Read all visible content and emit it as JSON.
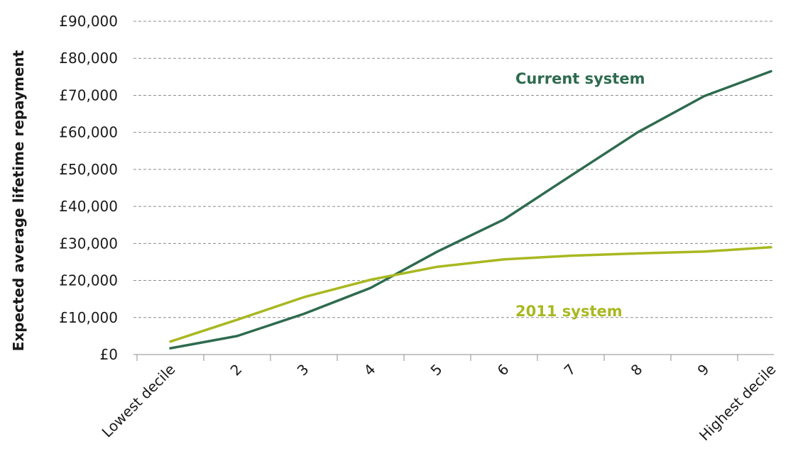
{
  "chart_data": {
    "type": "line",
    "title": "",
    "xlabel": "",
    "ylabel": "Expected average lifetime repayment",
    "categories": [
      "Lowest decile",
      "2",
      "3",
      "4",
      "5",
      "6",
      "7",
      "8",
      "9",
      "Highest decile"
    ],
    "ylim": [
      0,
      90000
    ],
    "yticks": [
      0,
      10000,
      20000,
      30000,
      40000,
      50000,
      60000,
      70000,
      80000,
      90000
    ],
    "ytick_labels": [
      "£0",
      "£10,000",
      "£20,000",
      "£30,000",
      "£40,000",
      "£50,000",
      "£60,000",
      "£70,000",
      "£80,000",
      "£90,000"
    ],
    "grid": true,
    "series": [
      {
        "name": "Current system",
        "color": "#2e6b4f",
        "values": [
          1700,
          5000,
          11000,
          18000,
          27800,
          36500,
          48300,
          60000,
          69800,
          76500
        ]
      },
      {
        "name": "2011 system",
        "color": "#a8b820",
        "values": [
          3500,
          9400,
          15500,
          20200,
          23700,
          25700,
          26700,
          27300,
          27800,
          29000
        ]
      }
    ]
  }
}
